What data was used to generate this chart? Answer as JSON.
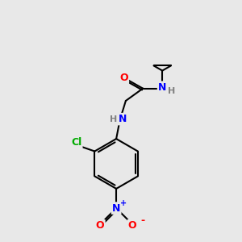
{
  "background_color": "#e8e8e8",
  "bond_color": "#000000",
  "atom_colors": {
    "O": "#ff0000",
    "N": "#0000ff",
    "Cl": "#00aa00",
    "C": "#000000",
    "H": "#808080"
  },
  "font_size": 9,
  "fig_size": [
    3.0,
    3.0
  ],
  "dpi": 100,
  "lw": 1.5
}
